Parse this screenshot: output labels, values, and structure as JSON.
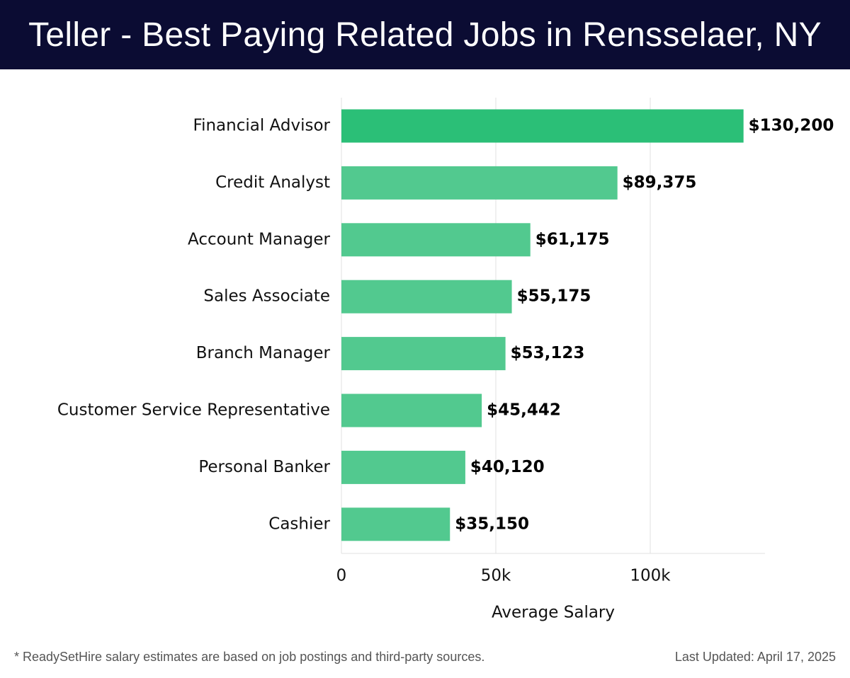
{
  "header": {
    "title": "Teller - Best Paying Related Jobs in Rensselaer, NY"
  },
  "chart_data": {
    "type": "bar",
    "orientation": "horizontal",
    "categories": [
      "Financial Advisor",
      "Credit Analyst",
      "Account Manager",
      "Sales Associate",
      "Branch Manager",
      "Customer Service Representative",
      "Personal Banker",
      "Cashier"
    ],
    "values": [
      130200,
      89375,
      61175,
      55175,
      53123,
      45442,
      40120,
      35150
    ],
    "value_labels": [
      "$130,200",
      "$89,375",
      "$61,175",
      "$55,175",
      "$53,123",
      "$45,442",
      "$40,120",
      "$35,150"
    ],
    "xlabel": "Average Salary",
    "ylabel": "",
    "xlim": [
      0,
      137000
    ],
    "x_ticks": [
      0,
      50000,
      100000
    ],
    "x_tick_labels": [
      "0",
      "50k",
      "100k"
    ],
    "grid": "vertical",
    "colors": {
      "top_bar": "#2bbf77",
      "bar": "#52c98f",
      "grid": "#e0e0e0"
    }
  },
  "footer": {
    "note": "* ReadySetHire salary estimates are based on job postings and third-party sources.",
    "updated": "Last Updated: April 17, 2025"
  }
}
